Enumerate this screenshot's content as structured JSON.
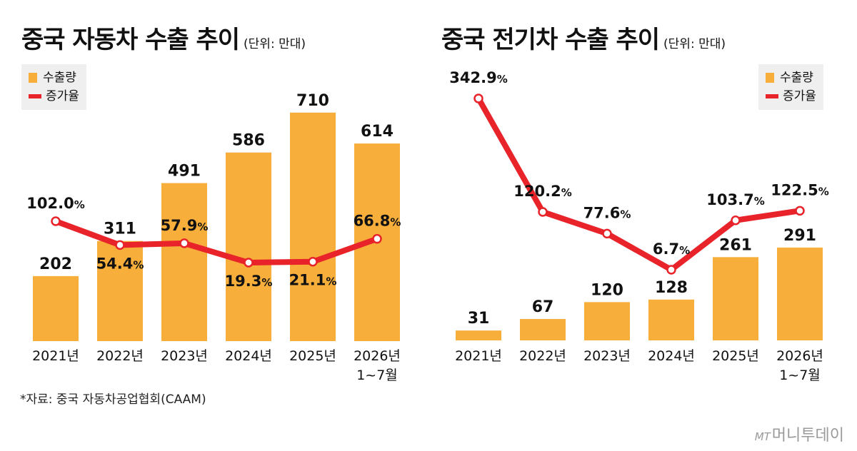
{
  "left": {
    "title": "중국 자동차 수출 추이",
    "unit": "(단위: 만대)",
    "legend": {
      "bar": "수출량",
      "line": "증가율"
    }
  },
  "right": {
    "title": "중국 전기차 수출 추이",
    "unit": "(단위: 만대)",
    "legend": {
      "bar": "수출량",
      "line": "증가율"
    }
  },
  "source": "*자료: 중국 자동차공업협회(CAAM)",
  "logo": {
    "prefix": "MT",
    "name": "머니투데이"
  },
  "colors": {
    "bar": "#f7ae3b",
    "line": "#e8232a",
    "legend_bg": "#efefef"
  },
  "chart_data": [
    {
      "type": "bar",
      "title": "중국 자동차 수출 추이",
      "unit": "(단위: 만대)",
      "categories": [
        [
          "2021년"
        ],
        [
          "2022년"
        ],
        [
          "2023년"
        ],
        [
          "2024년"
        ],
        [
          "2025년"
        ],
        [
          "2026년",
          "1~7월"
        ]
      ],
      "series": [
        {
          "name": "수출량",
          "type": "bar",
          "values": [
            202,
            311,
            491,
            586,
            710,
            614
          ]
        },
        {
          "name": "증가율",
          "type": "line",
          "values": [
            102.0,
            54.4,
            57.9,
            19.3,
            21.1,
            66.8
          ],
          "labels": [
            "102.0",
            "54.4",
            "57.9",
            "19.3",
            "21.1",
            "66.8"
          ],
          "suffix": "%"
        }
      ],
      "legend": "top-left",
      "grid": false
    },
    {
      "type": "bar",
      "title": "중국 전기차 수출 추이",
      "unit": "(단위: 만대)",
      "categories": [
        [
          "2021년"
        ],
        [
          "2022년"
        ],
        [
          "2023년"
        ],
        [
          "2024년"
        ],
        [
          "2025년"
        ],
        [
          "2026년",
          "1~7월"
        ]
      ],
      "series": [
        {
          "name": "수출량",
          "type": "bar",
          "values": [
            31,
            67,
            120,
            128,
            261,
            291
          ]
        },
        {
          "name": "증가율",
          "type": "line",
          "values": [
            342.9,
            120.2,
            77.6,
            6.7,
            103.7,
            122.5
          ],
          "labels": [
            "342.9",
            "120.2",
            "77.6",
            "6.7",
            "103.7",
            "122.5"
          ],
          "suffix": "%"
        }
      ],
      "legend": "top-right",
      "grid": false
    }
  ]
}
